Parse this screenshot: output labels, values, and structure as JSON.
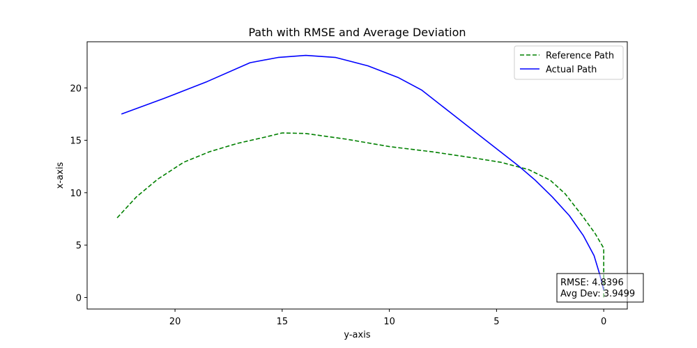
{
  "chart_data": {
    "type": "line",
    "title": "Path with RMSE and Average Deviation",
    "xlabel": "y-axis",
    "ylabel": "x-axis",
    "x_inverted": true,
    "xlim": [
      24.1,
      -1.1
    ],
    "ylim": [
      -1.1,
      24.4
    ],
    "xticks": [
      20,
      15,
      10,
      5,
      0
    ],
    "yticks": [
      0,
      5,
      10,
      15,
      20
    ],
    "grid": false,
    "legend_position": "top-right",
    "series": [
      {
        "name": "Reference Path",
        "color": "#008000",
        "style": "dashed",
        "points": [
          [
            22.7,
            7.6
          ],
          [
            21.8,
            9.6
          ],
          [
            20.8,
            11.3
          ],
          [
            19.6,
            12.9
          ],
          [
            18.4,
            13.9
          ],
          [
            17.1,
            14.7
          ],
          [
            15.8,
            15.3
          ],
          [
            15.0,
            15.7
          ],
          [
            13.9,
            15.65
          ],
          [
            12.0,
            15.1
          ],
          [
            10.0,
            14.4
          ],
          [
            8.0,
            13.9
          ],
          [
            6.0,
            13.3
          ],
          [
            4.8,
            12.9
          ],
          [
            3.5,
            12.2
          ],
          [
            2.5,
            11.2
          ],
          [
            1.8,
            9.9
          ],
          [
            1.0,
            7.8
          ],
          [
            0.4,
            6.1
          ],
          [
            0.0,
            4.7
          ],
          [
            0.0,
            0.0
          ]
        ]
      },
      {
        "name": "Actual Path",
        "color": "#0000ff",
        "style": "solid",
        "points": [
          [
            22.5,
            17.5
          ],
          [
            20.5,
            19.0
          ],
          [
            18.5,
            20.6
          ],
          [
            16.5,
            22.4
          ],
          [
            15.2,
            22.9
          ],
          [
            13.9,
            23.1
          ],
          [
            12.5,
            22.9
          ],
          [
            11.0,
            22.1
          ],
          [
            9.6,
            21.0
          ],
          [
            8.5,
            19.8
          ],
          [
            7.0,
            17.4
          ],
          [
            5.5,
            15.0
          ],
          [
            4.0,
            12.6
          ],
          [
            3.2,
            11.2
          ],
          [
            2.4,
            9.6
          ],
          [
            1.6,
            7.8
          ],
          [
            0.95,
            5.9
          ],
          [
            0.45,
            4.0
          ],
          [
            0.2,
            2.3
          ],
          [
            0.0,
            0.7
          ]
        ]
      }
    ],
    "annotation": {
      "lines": [
        "RMSE: 4.8396",
        "Avg Dev: 3.9499"
      ]
    }
  }
}
